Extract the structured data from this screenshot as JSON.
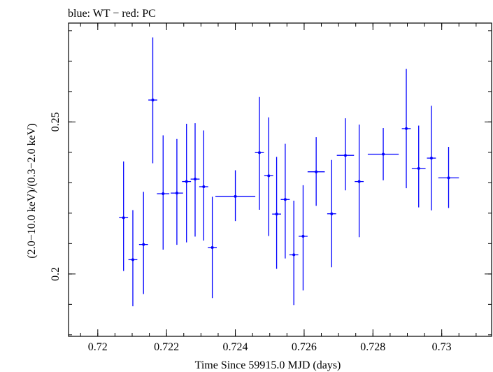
{
  "chart_data": {
    "type": "scatter",
    "title": "blue: WT − red: PC",
    "xlabel": "Time Since 59915.0 MJD (days)",
    "ylabel": "(2.0−10.0 keV)/(0.3−2.0 keV)",
    "xlim": [
      0.71915,
      0.73145
    ],
    "ylim": [
      0.1795,
      0.2825
    ],
    "xticks": [
      0.72,
      0.722,
      0.724,
      0.726,
      0.728,
      0.73
    ],
    "xtick_labels": [
      "0.72",
      "0.722",
      "0.724",
      "0.726",
      "0.728",
      "0.73"
    ],
    "yticks": [
      0.2,
      0.25
    ],
    "ytick_labels": [
      "0.2",
      "0.25"
    ],
    "x_minor_step": 0.0005,
    "y_minor_step": 0.01,
    "grid": false,
    "series": [
      {
        "color": "#0000ff",
        "points": [
          {
            "x": 0.72075,
            "xerr": 0.00013,
            "y": 0.2185,
            "yerr_lo": 0.0175,
            "yerr_hi": 0.0185
          },
          {
            "x": 0.72102,
            "xerr": 0.00013,
            "y": 0.2047,
            "yerr_lo": 0.0153,
            "yerr_hi": 0.0163
          },
          {
            "x": 0.72133,
            "xerr": 0.00013,
            "y": 0.2097,
            "yerr_lo": 0.0163,
            "yerr_hi": 0.0173
          },
          {
            "x": 0.7216,
            "xerr": 0.00013,
            "y": 0.2572,
            "yerr_lo": 0.0208,
            "yerr_hi": 0.0206
          },
          {
            "x": 0.7219,
            "xerr": 0.00018,
            "y": 0.2264,
            "yerr_lo": 0.0184,
            "yerr_hi": 0.0192
          },
          {
            "x": 0.7223,
            "xerr": 0.00018,
            "y": 0.2266,
            "yerr_lo": 0.017,
            "yerr_hi": 0.0178
          },
          {
            "x": 0.72258,
            "xerr": 0.00013,
            "y": 0.2304,
            "yerr_lo": 0.02,
            "yerr_hi": 0.019
          },
          {
            "x": 0.72283,
            "xerr": 0.00013,
            "y": 0.2312,
            "yerr_lo": 0.0189,
            "yerr_hi": 0.0184
          },
          {
            "x": 0.72308,
            "xerr": 0.00013,
            "y": 0.2287,
            "yerr_lo": 0.0177,
            "yerr_hi": 0.0185
          },
          {
            "x": 0.72333,
            "xerr": 0.00013,
            "y": 0.2087,
            "yerr_lo": 0.0166,
            "yerr_hi": 0.0167
          },
          {
            "x": 0.724,
            "xerr": 0.00058,
            "y": 0.2255,
            "yerr_lo": 0.0081,
            "yerr_hi": 0.0086
          },
          {
            "x": 0.7247,
            "xerr": 0.00013,
            "y": 0.2399,
            "yerr_lo": 0.0188,
            "yerr_hi": 0.0183
          },
          {
            "x": 0.72497,
            "xerr": 0.00013,
            "y": 0.2323,
            "yerr_lo": 0.0198,
            "yerr_hi": 0.0192
          },
          {
            "x": 0.7252,
            "xerr": 0.00013,
            "y": 0.2197,
            "yerr_lo": 0.018,
            "yerr_hi": 0.0188
          },
          {
            "x": 0.72545,
            "xerr": 0.00013,
            "y": 0.2245,
            "yerr_lo": 0.0194,
            "yerr_hi": 0.0183
          },
          {
            "x": 0.7257,
            "xerr": 0.00013,
            "y": 0.2063,
            "yerr_lo": 0.0165,
            "yerr_hi": 0.0178
          },
          {
            "x": 0.72597,
            "xerr": 0.00013,
            "y": 0.2124,
            "yerr_lo": 0.0178,
            "yerr_hi": 0.0168
          },
          {
            "x": 0.72635,
            "xerr": 0.00025,
            "y": 0.2336,
            "yerr_lo": 0.0112,
            "yerr_hi": 0.0114
          },
          {
            "x": 0.7268,
            "xerr": 0.00013,
            "y": 0.2198,
            "yerr_lo": 0.0176,
            "yerr_hi": 0.0177
          },
          {
            "x": 0.7272,
            "xerr": 0.00025,
            "y": 0.239,
            "yerr_lo": 0.0115,
            "yerr_hi": 0.0122
          },
          {
            "x": 0.7276,
            "xerr": 0.00013,
            "y": 0.2304,
            "yerr_lo": 0.0183,
            "yerr_hi": 0.0187
          },
          {
            "x": 0.7283,
            "xerr": 0.00045,
            "y": 0.2394,
            "yerr_lo": 0.0086,
            "yerr_hi": 0.0086
          },
          {
            "x": 0.72897,
            "xerr": 0.00013,
            "y": 0.2478,
            "yerr_lo": 0.0196,
            "yerr_hi": 0.0196
          },
          {
            "x": 0.72933,
            "xerr": 0.0002,
            "y": 0.2347,
            "yerr_lo": 0.0128,
            "yerr_hi": 0.0141
          },
          {
            "x": 0.7297,
            "xerr": 0.00013,
            "y": 0.2381,
            "yerr_lo": 0.0172,
            "yerr_hi": 0.0172
          },
          {
            "x": 0.7302,
            "xerr": 0.0003,
            "y": 0.2316,
            "yerr_lo": 0.0099,
            "yerr_hi": 0.0102
          }
        ]
      }
    ]
  }
}
